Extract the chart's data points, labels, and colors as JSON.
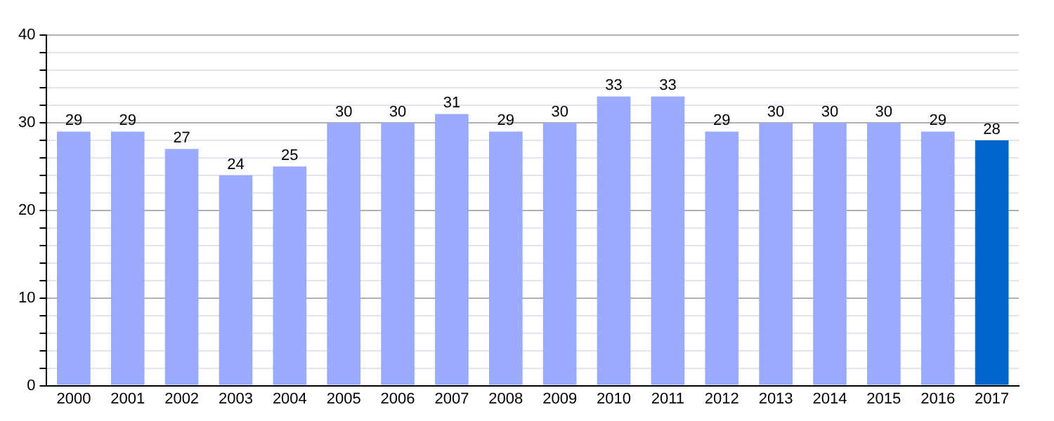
{
  "chart_data": {
    "type": "bar",
    "categories": [
      "2000",
      "2001",
      "2002",
      "2003",
      "2004",
      "2005",
      "2006",
      "2007",
      "2008",
      "2009",
      "2010",
      "2011",
      "2012",
      "2013",
      "2014",
      "2015",
      "2016",
      "2017"
    ],
    "values": [
      29,
      29,
      27,
      24,
      25,
      30,
      30,
      31,
      29,
      30,
      33,
      33,
      29,
      30,
      30,
      30,
      29,
      28
    ],
    "colors": [
      "#99aaff",
      "#99aaff",
      "#99aaff",
      "#99aaff",
      "#99aaff",
      "#99aaff",
      "#99aaff",
      "#99aaff",
      "#99aaff",
      "#99aaff",
      "#99aaff",
      "#99aaff",
      "#99aaff",
      "#99aaff",
      "#99aaff",
      "#99aaff",
      "#99aaff",
      "#0066cc"
    ],
    "ylim": [
      0,
      40
    ],
    "yticks": [
      0,
      {
        "value": 2,
        "label": null
      },
      {
        "value": 4,
        "label": null
      },
      {
        "value": 6,
        "label": null
      },
      {
        "value": 8,
        "label": null
      },
      10,
      {
        "value": 12,
        "label": null
      },
      {
        "value": 14,
        "label": null
      },
      {
        "value": 16,
        "label": null
      },
      {
        "value": 18,
        "label": null
      },
      20,
      {
        "value": 22,
        "label": null
      },
      {
        "value": 24,
        "label": null
      },
      {
        "value": 26,
        "label": null
      },
      {
        "value": 28,
        "label": null
      },
      30,
      {
        "value": 32,
        "label": null
      },
      {
        "value": 34,
        "label": null
      },
      {
        "value": 36,
        "label": null
      },
      {
        "value": 38,
        "label": null
      },
      40
    ],
    "grid": "y",
    "data_labels": true,
    "legend": false
  }
}
